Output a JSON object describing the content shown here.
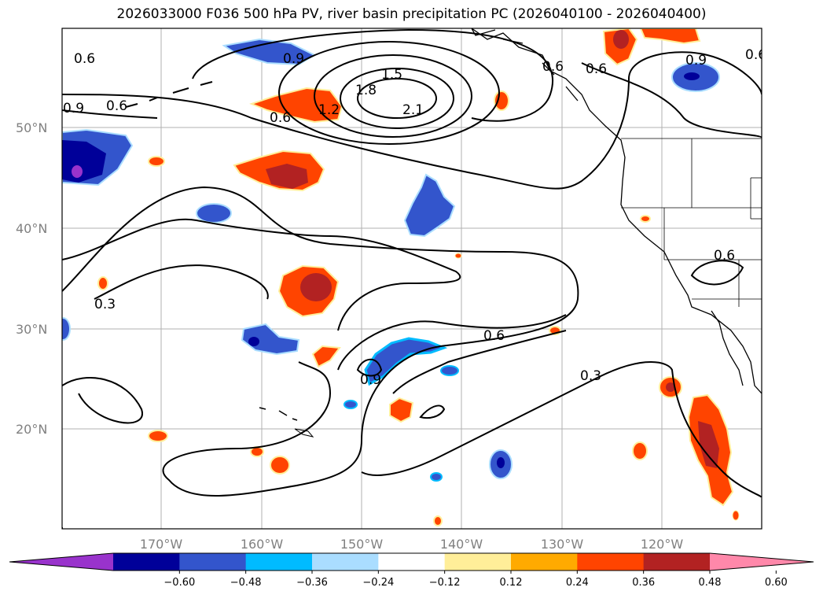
{
  "title": "2026033000 F036 500 hPa PV, river basin precipitation PC (2026040100 - 2026040400)",
  "lat_labels": [
    "50°N",
    "40°N",
    "30°N",
    "20°N"
  ],
  "lon_labels": [
    "170°W",
    "160°W",
    "150°W",
    "140°W",
    "130°W",
    "120°W"
  ],
  "contour_labels": [
    "0.6",
    "0.9",
    "0.6",
    "0.9",
    "1.2",
    "1.5",
    "1.8",
    "2.1",
    "0.6",
    "0.6",
    "0.6",
    "0.9",
    "0.6",
    "0.6",
    "0.3",
    "0.9",
    "0.6",
    "0.3"
  ],
  "colorbar": {
    "colors": [
      "#9933cc",
      "#000099",
      "#3355cc",
      "#00bbff",
      "#aaddff",
      "#ffffff",
      "#ffee99",
      "#ffaa00",
      "#ff4400",
      "#b22222",
      "#ff88aa"
    ],
    "ticks": [
      "−0.60",
      "−0.48",
      "−0.36",
      "−0.24",
      "−0.12",
      "0.12",
      "0.24",
      "0.36",
      "0.48",
      "0.60"
    ]
  }
}
